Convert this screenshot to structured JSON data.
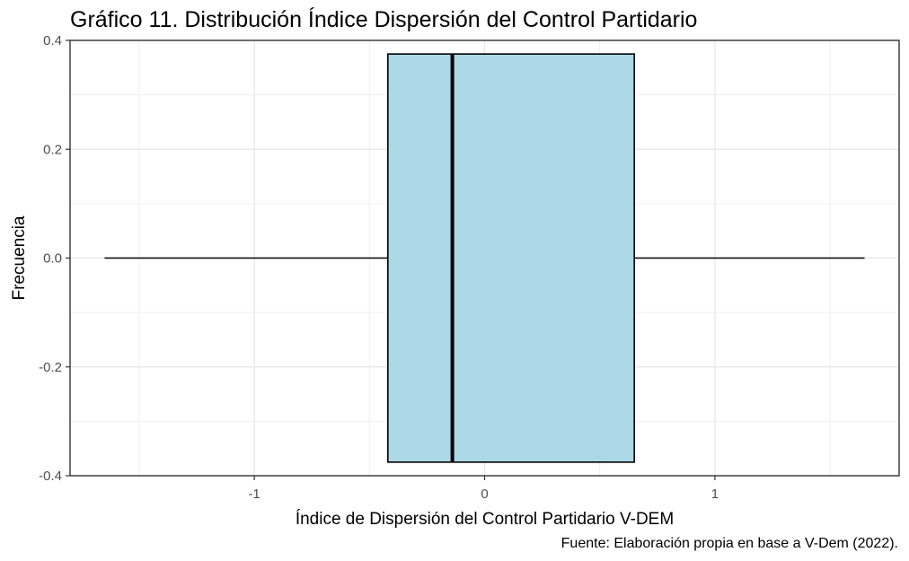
{
  "title": "Gráfico 11. Distribución Índice Dispersión del Control Partidario",
  "caption": "Fuente: Elaboración propia en base a V-Dem (2022).",
  "chart_data": {
    "type": "boxplot",
    "xlabel": "Índice de Dispersión del Control Partidario V-DEM",
    "ylabel": "Frecuencia",
    "xlim": [
      -1.8,
      1.8
    ],
    "ylim": [
      -0.4,
      0.4
    ],
    "x_ticks": [
      {
        "value": -1,
        "label": "-1"
      },
      {
        "value": 0,
        "label": "0"
      },
      {
        "value": 1,
        "label": "1"
      }
    ],
    "y_ticks": [
      {
        "value": -0.4,
        "label": "-0.4"
      },
      {
        "value": -0.2,
        "label": "-0.2"
      },
      {
        "value": 0.0,
        "label": "0.0"
      },
      {
        "value": 0.2,
        "label": "0.2"
      },
      {
        "value": 0.4,
        "label": "0.4"
      }
    ],
    "box": {
      "min": -1.65,
      "q1": -0.42,
      "median": -0.14,
      "q3": 0.65,
      "max": 1.65,
      "y_center": 0.0,
      "half_width": 0.375
    },
    "fill_color": "#add8e6",
    "line_color": "#000000",
    "grid": true,
    "panel_border": true
  }
}
